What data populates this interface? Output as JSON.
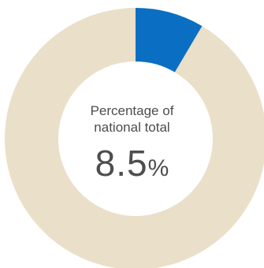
{
  "chart_data": {
    "type": "pie",
    "variant": "donut",
    "slices": [
      {
        "value": 8.5,
        "color": "#0a6fc2"
      },
      {
        "value": 91.5,
        "color": "#eadfc8"
      }
    ],
    "center_label": "Percentage of national total",
    "center_label_line1": "Percentage of",
    "center_label_line2": "national total",
    "center_value": "8.5",
    "center_unit": "%"
  }
}
